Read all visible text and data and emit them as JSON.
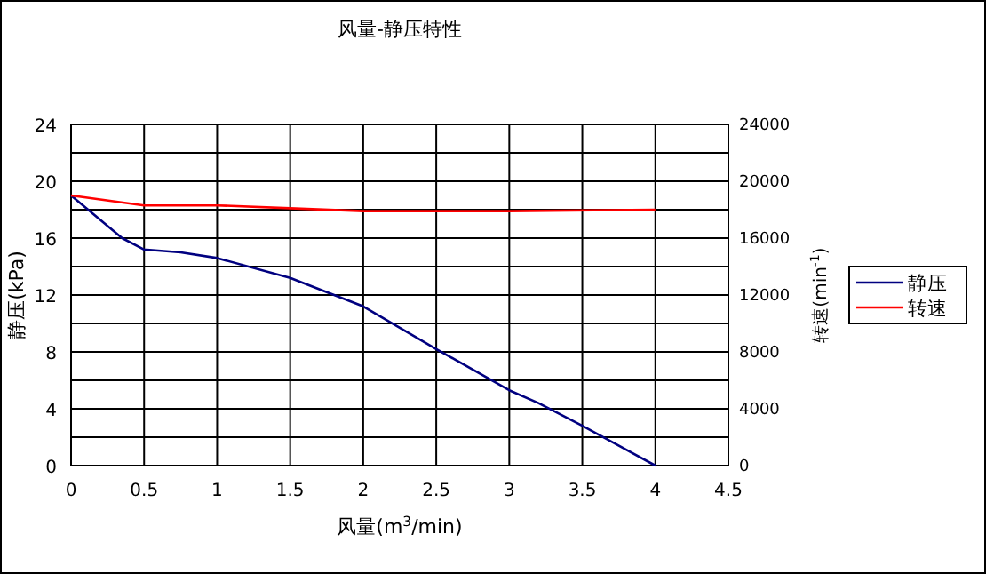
{
  "chart_data": {
    "type": "line",
    "title": "风量-静压特性",
    "xlabel": "风量(m$^{3}$/min)",
    "ylabel": "静压(kPa)",
    "y2label": "转速(min$^{-1}$)",
    "xlim": [
      0,
      4.5
    ],
    "xticks": [
      0,
      0.5,
      1,
      1.5,
      2,
      2.5,
      3,
      3.5,
      4,
      4.5
    ],
    "ylim": [
      0,
      24
    ],
    "yticks": [
      0,
      {
        "value": 2,
        "label": null
      },
      4,
      {
        "value": 6,
        "label": null
      },
      8,
      {
        "value": 10,
        "label": null
      },
      12,
      {
        "value": 14,
        "label": null
      },
      16,
      {
        "value": 18,
        "label": null
      },
      20,
      {
        "value": 22,
        "label": null
      },
      24
    ],
    "y2lim": [
      0,
      24000
    ],
    "y2ticks": [
      0,
      4000,
      8000,
      12000,
      16000,
      20000,
      24000
    ],
    "grid": true,
    "legend": "right",
    "marker": "none",
    "line_style": "solid",
    "series": [
      {
        "name": "静压",
        "color": "#000080",
        "x": [
          0,
          0.35,
          0.5,
          0.75,
          1,
          1.5,
          2,
          2.5,
          3,
          3.2,
          3.5,
          4
        ],
        "values": [
          19,
          16,
          15.2,
          15,
          14.6,
          13.2,
          11.2,
          8.2,
          5.3,
          4.4,
          2.8,
          0
        ]
      },
      {
        "name": "转速",
        "color": "#ff0000",
        "axis": "y2",
        "x": [
          0,
          0.5,
          1,
          1.5,
          2,
          3,
          4
        ],
        "values": [
          19000,
          18300,
          18300,
          18100,
          17900,
          17900,
          18000
        ]
      }
    ]
  }
}
